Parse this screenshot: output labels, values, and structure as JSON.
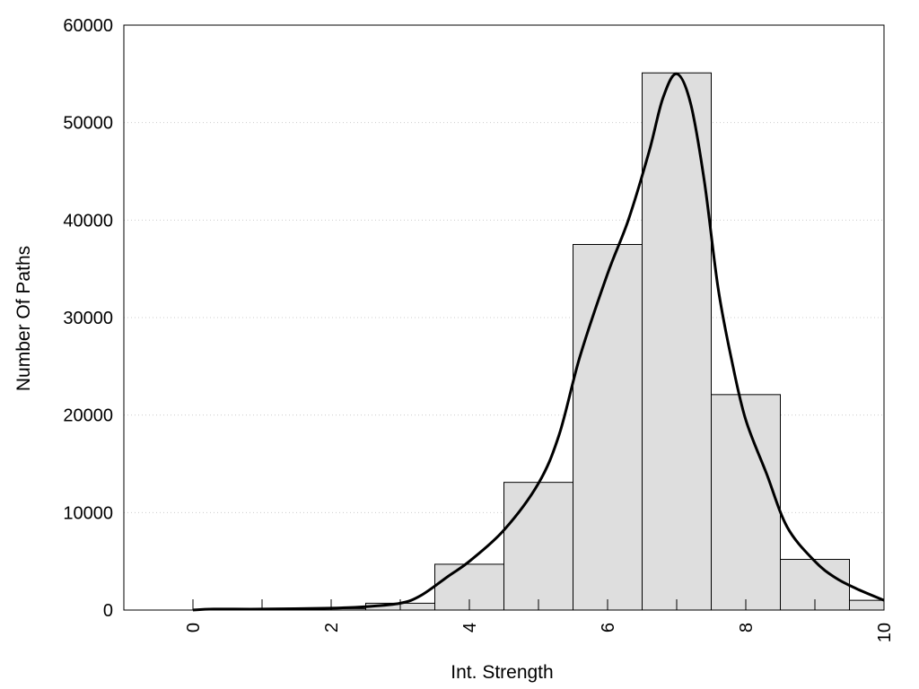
{
  "chart_data": {
    "type": "bar",
    "title": "",
    "xlabel": "Int. Strength",
    "ylabel": "Number Of Paths",
    "xlim": [
      -1,
      10
    ],
    "ylim": [
      0,
      60000
    ],
    "x_ticks": [
      "0",
      "2",
      "4",
      "6",
      "8",
      "10"
    ],
    "y_ticks": [
      "0",
      "10000",
      "20000",
      "30000",
      "40000",
      "50000",
      "60000"
    ],
    "grid": "horizontal dotted",
    "legend": "none",
    "bins": [
      {
        "x": 0,
        "value": 0
      },
      {
        "x": 1,
        "value": 0
      },
      {
        "x": 2,
        "value": 150
      },
      {
        "x": 3,
        "value": 700
      },
      {
        "x": 4,
        "value": 4700
      },
      {
        "x": 5,
        "value": 13100
      },
      {
        "x": 6,
        "value": 37500
      },
      {
        "x": 7,
        "value": 55100
      },
      {
        "x": 8,
        "value": 22100
      },
      {
        "x": 9,
        "value": 5200
      },
      {
        "x": 10,
        "value": 1000
      }
    ],
    "bin_width": 1,
    "density_curve": {
      "x": [
        0,
        0.3,
        1,
        2,
        2.5,
        3,
        3.3,
        3.7,
        4,
        4.5,
        5,
        5.3,
        5.6,
        6,
        6.3,
        6.6,
        6.8,
        7,
        7.2,
        7.4,
        7.6,
        7.8,
        8,
        8.3,
        8.6,
        9,
        9.3,
        9.6,
        10
      ],
      "y": [
        0,
        100,
        100,
        200,
        350,
        700,
        1500,
        3500,
        5000,
        8200,
        13000,
        18000,
        26000,
        34500,
        40000,
        47000,
        52500,
        55000,
        52000,
        44000,
        33000,
        25500,
        19500,
        14000,
        8500,
        5000,
        3300,
        2200,
        1000
      ]
    },
    "colors": {
      "bar_fill": "#dedede",
      "bar_stroke": "#000000",
      "curve": "#000000",
      "grid": "#cccccc"
    }
  }
}
